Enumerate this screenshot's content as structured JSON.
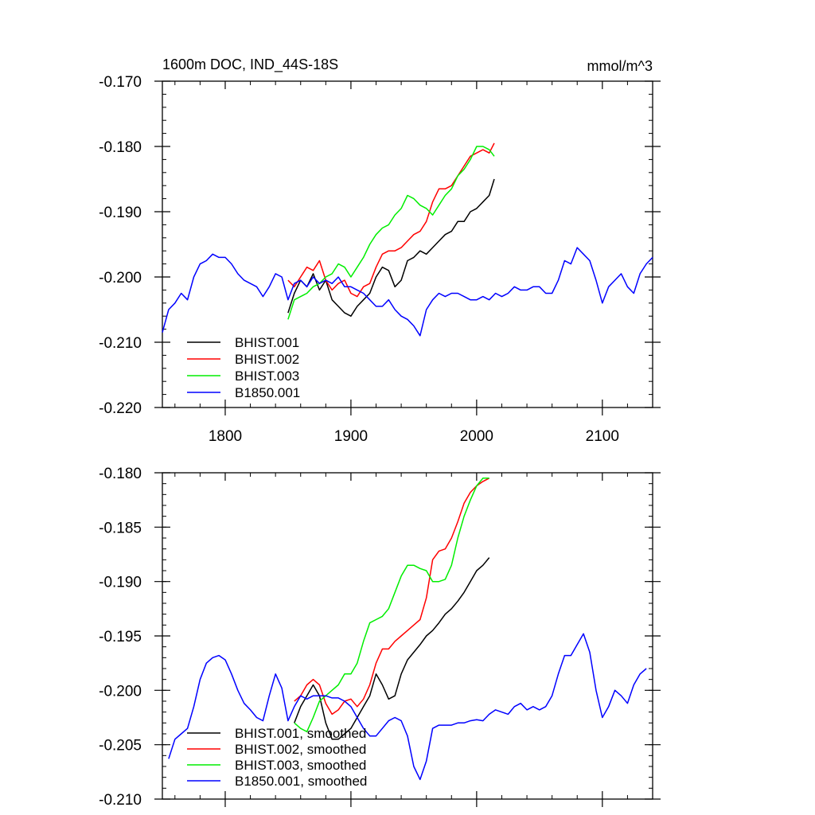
{
  "chart_data": [
    {
      "type": "line",
      "title": "1600m DOC, IND_44S-18S",
      "units": "mmol/m^3",
      "xlim": [
        1750,
        2140
      ],
      "ylim": [
        -0.22,
        -0.17
      ],
      "xticks": [
        1800,
        1900,
        2000,
        2100
      ],
      "xtick_labels": [
        "1800",
        "1900",
        "2000",
        "2100"
      ],
      "yticks": [
        -0.17,
        -0.18,
        -0.19,
        -0.2,
        -0.21,
        -0.22
      ],
      "ytick_labels": [
        "-0.170",
        "-0.180",
        "-0.190",
        "-0.200",
        "-0.210",
        "-0.220"
      ],
      "legend_position": "bottom-left",
      "series": [
        {
          "name": "BHIST.001",
          "color": "#000000",
          "x": [
            1850,
            1855,
            1860,
            1865,
            1870,
            1875,
            1880,
            1885,
            1890,
            1895,
            1900,
            1905,
            1910,
            1915,
            1920,
            1925,
            1930,
            1935,
            1940,
            1945,
            1950,
            1955,
            1960,
            1965,
            1970,
            1975,
            1980,
            1985,
            1990,
            1995,
            2000,
            2005,
            2010,
            2014
          ],
          "y": [
            -0.2055,
            -0.2025,
            -0.2005,
            -0.2015,
            -0.1995,
            -0.202,
            -0.2005,
            -0.2035,
            -0.2045,
            -0.2055,
            -0.206,
            -0.2045,
            -0.2035,
            -0.2025,
            -0.2,
            -0.1985,
            -0.199,
            -0.2015,
            -0.2005,
            -0.1975,
            -0.197,
            -0.196,
            -0.1965,
            -0.1955,
            -0.1945,
            -0.1935,
            -0.193,
            -0.1915,
            -0.1915,
            -0.19,
            -0.1895,
            -0.1885,
            -0.1875,
            -0.185
          ]
        },
        {
          "name": "BHIST.002",
          "color": "#ff0000",
          "x": [
            1850,
            1855,
            1860,
            1865,
            1870,
            1875,
            1880,
            1885,
            1890,
            1895,
            1900,
            1905,
            1910,
            1915,
            1920,
            1925,
            1930,
            1935,
            1940,
            1945,
            1950,
            1955,
            1960,
            1965,
            1970,
            1975,
            1980,
            1985,
            1990,
            1995,
            2000,
            2005,
            2010,
            2014
          ],
          "y": [
            -0.2005,
            -0.2015,
            -0.2,
            -0.1985,
            -0.199,
            -0.1975,
            -0.2005,
            -0.202,
            -0.201,
            -0.2005,
            -0.2025,
            -0.203,
            -0.2015,
            -0.201,
            -0.1985,
            -0.1965,
            -0.196,
            -0.196,
            -0.1955,
            -0.1945,
            -0.1935,
            -0.193,
            -0.1915,
            -0.1885,
            -0.1865,
            -0.1865,
            -0.186,
            -0.1845,
            -0.183,
            -0.1815,
            -0.181,
            -0.1805,
            -0.181,
            -0.1795
          ]
        },
        {
          "name": "BHIST.003",
          "color": "#00ee00",
          "x": [
            1850,
            1855,
            1860,
            1865,
            1870,
            1875,
            1880,
            1885,
            1890,
            1895,
            1900,
            1905,
            1910,
            1915,
            1920,
            1925,
            1930,
            1935,
            1940,
            1945,
            1950,
            1955,
            1960,
            1965,
            1970,
            1975,
            1980,
            1985,
            1990,
            1995,
            2000,
            2005,
            2010,
            2014
          ],
          "y": [
            -0.2065,
            -0.2035,
            -0.203,
            -0.2025,
            -0.2015,
            -0.201,
            -0.2,
            -0.1995,
            -0.198,
            -0.1985,
            -0.2,
            -0.1985,
            -0.197,
            -0.195,
            -0.1935,
            -0.1925,
            -0.192,
            -0.1905,
            -0.1895,
            -0.1875,
            -0.188,
            -0.189,
            -0.1895,
            -0.1905,
            -0.189,
            -0.1875,
            -0.1865,
            -0.1845,
            -0.1835,
            -0.182,
            -0.18,
            -0.18,
            -0.1805,
            -0.1815
          ]
        },
        {
          "name": "B1850.001",
          "color": "#0000ff",
          "x": [
            1750,
            1755,
            1760,
            1765,
            1770,
            1775,
            1780,
            1785,
            1790,
            1795,
            1800,
            1805,
            1810,
            1815,
            1820,
            1825,
            1830,
            1835,
            1840,
            1845,
            1850,
            1855,
            1860,
            1865,
            1870,
            1875,
            1880,
            1885,
            1890,
            1895,
            1900,
            1905,
            1910,
            1915,
            1920,
            1925,
            1930,
            1935,
            1940,
            1945,
            1950,
            1955,
            1960,
            1965,
            1970,
            1975,
            1980,
            1985,
            1990,
            1995,
            2000,
            2005,
            2010,
            2015,
            2020,
            2025,
            2030,
            2035,
            2040,
            2045,
            2050,
            2055,
            2060,
            2065,
            2070,
            2075,
            2080,
            2085,
            2090,
            2095,
            2100,
            2105,
            2110,
            2115,
            2120,
            2125,
            2130,
            2135,
            2140
          ],
          "y": [
            -0.2085,
            -0.205,
            -0.204,
            -0.2025,
            -0.2035,
            -0.2,
            -0.198,
            -0.1975,
            -0.1965,
            -0.197,
            -0.197,
            -0.198,
            -0.1995,
            -0.2005,
            -0.201,
            -0.2015,
            -0.203,
            -0.2015,
            -0.1995,
            -0.2,
            -0.2035,
            -0.201,
            -0.2005,
            -0.2015,
            -0.2,
            -0.201,
            -0.2005,
            -0.201,
            -0.2,
            -0.2015,
            -0.2015,
            -0.202,
            -0.2025,
            -0.2035,
            -0.2045,
            -0.2045,
            -0.2035,
            -0.205,
            -0.206,
            -0.2065,
            -0.2075,
            -0.209,
            -0.205,
            -0.2035,
            -0.2025,
            -0.203,
            -0.2025,
            -0.2025,
            -0.203,
            -0.2035,
            -0.2035,
            -0.203,
            -0.2035,
            -0.2025,
            -0.203,
            -0.2025,
            -0.2015,
            -0.202,
            -0.202,
            -0.2015,
            -0.2015,
            -0.2025,
            -0.2025,
            -0.2005,
            -0.1975,
            -0.198,
            -0.1955,
            -0.1965,
            -0.1975,
            -0.2005,
            -0.204,
            -0.2015,
            -0.2005,
            -0.1995,
            -0.2015,
            -0.2025,
            -0.1995,
            -0.198,
            -0.197
          ]
        }
      ]
    },
    {
      "type": "line",
      "xlim": [
        1750,
        2140
      ],
      "ylim": [
        -0.21,
        -0.18
      ],
      "xticks": [
        1800,
        1900,
        2000,
        2100
      ],
      "yticks": [
        -0.18,
        -0.185,
        -0.19,
        -0.195,
        -0.2,
        -0.205,
        -0.21
      ],
      "ytick_labels": [
        "-0.180",
        "-0.185",
        "-0.190",
        "-0.195",
        "-0.200",
        "-0.205",
        "-0.210"
      ],
      "legend_position": "bottom-left",
      "series": [
        {
          "name": "BHIST.001, smoothed",
          "color": "#000000",
          "x": [
            1855,
            1860,
            1865,
            1870,
            1875,
            1880,
            1885,
            1890,
            1895,
            1900,
            1905,
            1910,
            1915,
            1920,
            1925,
            1930,
            1935,
            1940,
            1945,
            1950,
            1955,
            1960,
            1965,
            1970,
            1975,
            1980,
            1985,
            1990,
            1995,
            2000,
            2005,
            2010
          ],
          "y": [
            -0.203,
            -0.2015,
            -0.2005,
            -0.1995,
            -0.2005,
            -0.203,
            -0.2045,
            -0.2045,
            -0.204,
            -0.2035,
            -0.2025,
            -0.2015,
            -0.2005,
            -0.1985,
            -0.1995,
            -0.2008,
            -0.2005,
            -0.1985,
            -0.1972,
            -0.1965,
            -0.1958,
            -0.195,
            -0.1945,
            -0.1938,
            -0.193,
            -0.1925,
            -0.1918,
            -0.191,
            -0.19,
            -0.189,
            -0.1885,
            -0.1878
          ]
        },
        {
          "name": "BHIST.002, smoothed",
          "color": "#ff0000",
          "x": [
            1855,
            1860,
            1865,
            1870,
            1875,
            1880,
            1885,
            1890,
            1895,
            1900,
            1905,
            1910,
            1915,
            1920,
            1925,
            1930,
            1935,
            1940,
            1945,
            1950,
            1955,
            1960,
            1965,
            1970,
            1975,
            1980,
            1985,
            1990,
            1995,
            2000,
            2005,
            2010
          ],
          "y": [
            -0.201,
            -0.2005,
            -0.1995,
            -0.199,
            -0.1995,
            -0.2012,
            -0.2022,
            -0.2018,
            -0.201,
            -0.2008,
            -0.2015,
            -0.2008,
            -0.1995,
            -0.1975,
            -0.1962,
            -0.1962,
            -0.1955,
            -0.195,
            -0.1945,
            -0.194,
            -0.1935,
            -0.1915,
            -0.188,
            -0.1872,
            -0.187,
            -0.186,
            -0.1845,
            -0.1828,
            -0.1818,
            -0.1812,
            -0.1808,
            -0.1805
          ]
        },
        {
          "name": "BHIST.003, smoothed",
          "color": "#00ee00",
          "x": [
            1855,
            1860,
            1865,
            1870,
            1875,
            1880,
            1885,
            1890,
            1895,
            1900,
            1905,
            1910,
            1915,
            1920,
            1925,
            1930,
            1935,
            1940,
            1945,
            1950,
            1955,
            1960,
            1965,
            1970,
            1975,
            1980,
            1985,
            1990,
            1995,
            2000,
            2005,
            2010
          ],
          "y": [
            -0.203,
            -0.2035,
            -0.2038,
            -0.2025,
            -0.201,
            -0.2005,
            -0.2,
            -0.1995,
            -0.1985,
            -0.1985,
            -0.1975,
            -0.1955,
            -0.1938,
            -0.1935,
            -0.1932,
            -0.1925,
            -0.191,
            -0.1895,
            -0.1885,
            -0.1885,
            -0.1888,
            -0.189,
            -0.19,
            -0.19,
            -0.1898,
            -0.1885,
            -0.186,
            -0.184,
            -0.1825,
            -0.1812,
            -0.1805,
            -0.1805
          ]
        },
        {
          "name": "B1850.001, smoothed",
          "color": "#0000ff",
          "x": [
            1755,
            1760,
            1765,
            1770,
            1775,
            1780,
            1785,
            1790,
            1795,
            1800,
            1805,
            1810,
            1815,
            1820,
            1825,
            1830,
            1835,
            1840,
            1845,
            1850,
            1855,
            1860,
            1865,
            1870,
            1875,
            1880,
            1885,
            1890,
            1895,
            1900,
            1905,
            1910,
            1915,
            1920,
            1925,
            1930,
            1935,
            1940,
            1945,
            1950,
            1955,
            1960,
            1965,
            1970,
            1975,
            1980,
            1985,
            1990,
            1995,
            2000,
            2005,
            2010,
            2015,
            2020,
            2025,
            2030,
            2035,
            2040,
            2045,
            2050,
            2055,
            2060,
            2065,
            2070,
            2075,
            2080,
            2085,
            2090,
            2095,
            2100,
            2105,
            2110,
            2115,
            2120,
            2125,
            2130,
            2135
          ],
          "y": [
            -0.2063,
            -0.2045,
            -0.204,
            -0.2035,
            -0.2015,
            -0.199,
            -0.1975,
            -0.197,
            -0.1968,
            -0.1972,
            -0.1985,
            -0.2,
            -0.2012,
            -0.2018,
            -0.2025,
            -0.2028,
            -0.2005,
            -0.1985,
            -0.1998,
            -0.2028,
            -0.2015,
            -0.2005,
            -0.2008,
            -0.2005,
            -0.2005,
            -0.2005,
            -0.2007,
            -0.2007,
            -0.201,
            -0.2015,
            -0.2025,
            -0.2035,
            -0.2042,
            -0.2042,
            -0.2035,
            -0.2028,
            -0.2025,
            -0.2028,
            -0.2042,
            -0.207,
            -0.2082,
            -0.2065,
            -0.2035,
            -0.2032,
            -0.2032,
            -0.2032,
            -0.203,
            -0.203,
            -0.2028,
            -0.2027,
            -0.2028,
            -0.2022,
            -0.2018,
            -0.202,
            -0.2022,
            -0.2015,
            -0.2012,
            -0.2018,
            -0.2015,
            -0.2018,
            -0.2015,
            -0.2005,
            -0.1985,
            -0.1968,
            -0.1968,
            -0.1958,
            -0.1948,
            -0.1965,
            -0.2,
            -0.2025,
            -0.2015,
            -0.2,
            -0.2005,
            -0.2012,
            -0.1995,
            -0.1985,
            -0.198
          ]
        }
      ]
    }
  ]
}
